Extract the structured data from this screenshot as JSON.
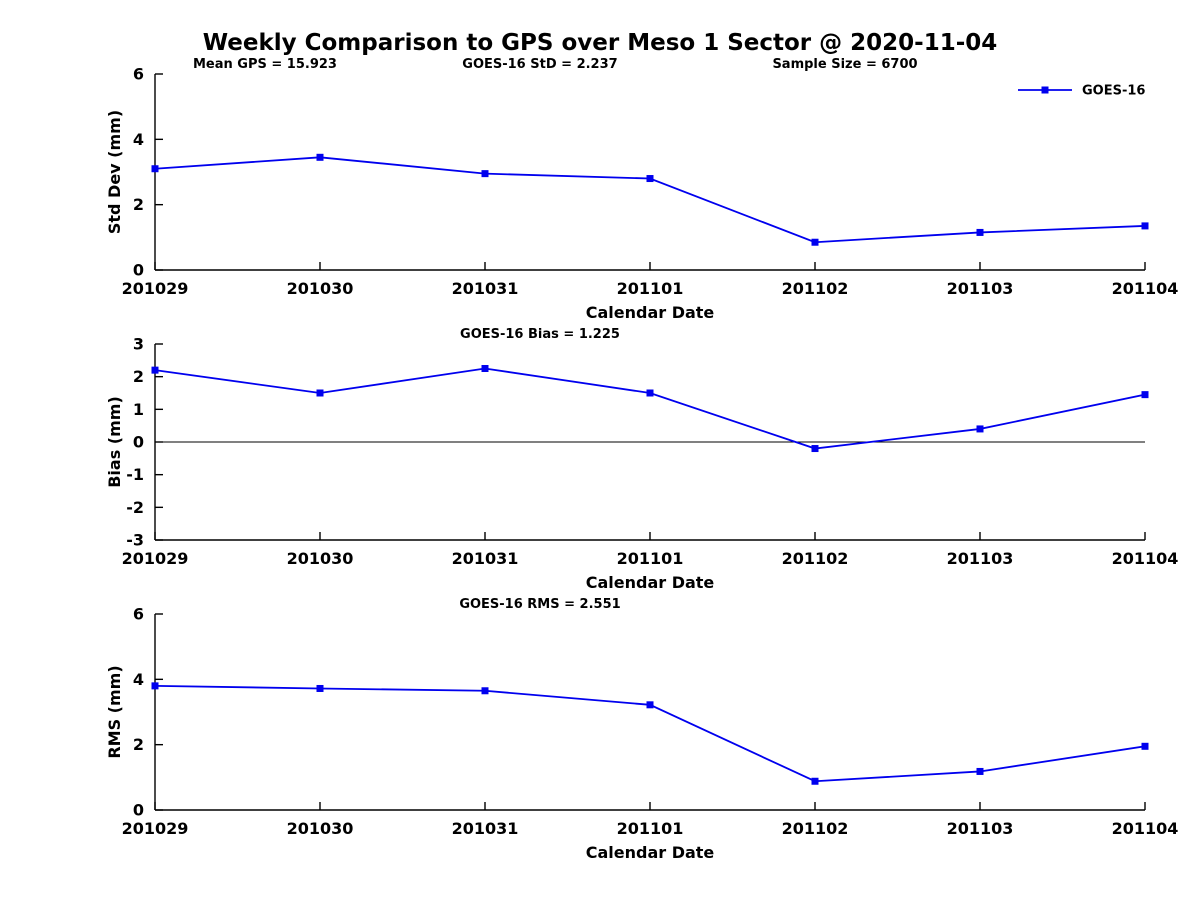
{
  "title": "Weekly Comparison to GPS over Meso 1 Sector @ 2020-11-04",
  "accent_color": "#0000ee",
  "legend": {
    "label": "GOES-16"
  },
  "chart_data": [
    {
      "type": "line",
      "name": "std-dev",
      "annotations": [
        "Mean GPS = 15.923",
        "GOES-16 StD = 2.237",
        "Sample Size = 6700"
      ],
      "categories": [
        "201029",
        "201030",
        "201031",
        "201101",
        "201102",
        "201103",
        "201104"
      ],
      "series": [
        {
          "name": "GOES-16",
          "color": "#0000ee",
          "values": [
            3.1,
            3.45,
            2.95,
            2.8,
            0.85,
            1.15,
            1.35
          ]
        }
      ],
      "xlabel": "Calendar Date",
      "ylabel": "Std Dev (mm)",
      "ylim": [
        0,
        6
      ],
      "yticks": [
        0,
        2,
        4,
        6
      ],
      "zero_line": false,
      "show_legend": true
    },
    {
      "type": "line",
      "name": "bias",
      "annotations": [
        "GOES-16 Bias  = 1.225"
      ],
      "categories": [
        "201029",
        "201030",
        "201031",
        "201101",
        "201102",
        "201103",
        "201104"
      ],
      "series": [
        {
          "name": "GOES-16",
          "color": "#0000ee",
          "values": [
            2.2,
            1.5,
            2.25,
            1.5,
            -0.2,
            0.4,
            1.45
          ]
        }
      ],
      "xlabel": "Calendar Date",
      "ylabel": "Bias (mm)",
      "ylim": [
        -3,
        3
      ],
      "yticks": [
        -3,
        -2,
        -1,
        0,
        1,
        2,
        3
      ],
      "zero_line": true,
      "show_legend": false
    },
    {
      "type": "line",
      "name": "rms",
      "annotations": [
        "GOES-16 RMS = 2.551"
      ],
      "categories": [
        "201029",
        "201030",
        "201031",
        "201101",
        "201102",
        "201103",
        "201104"
      ],
      "series": [
        {
          "name": "GOES-16",
          "color": "#0000ee",
          "values": [
            3.8,
            3.72,
            3.65,
            3.22,
            0.88,
            1.18,
            1.95
          ]
        }
      ],
      "xlabel": "Calendar Date",
      "ylabel": "RMS (mm)",
      "ylim": [
        0,
        6
      ],
      "yticks": [
        0,
        2,
        4,
        6
      ],
      "zero_line": false,
      "show_legend": false
    }
  ]
}
